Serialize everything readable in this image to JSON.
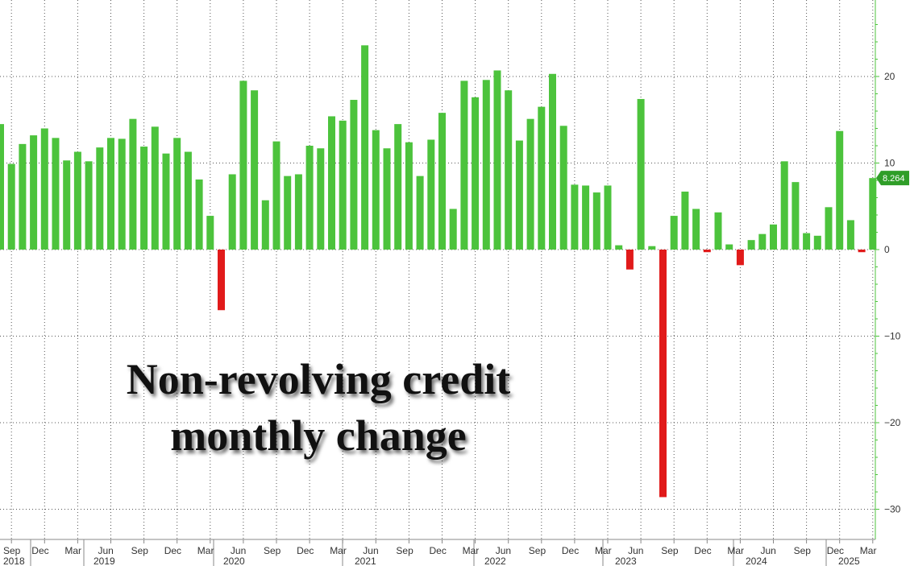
{
  "chart_data": {
    "type": "bar",
    "title_lines": [
      "Non-revolving credit",
      "monthly change"
    ],
    "colors": {
      "positive": "#4cc33c",
      "negative": "#e11a1a",
      "axis": "#4cc33c",
      "grid": "#555555"
    },
    "ylim": [
      -31,
      28
    ],
    "yticks": [
      20,
      10,
      0,
      -10,
      -20,
      -30
    ],
    "grid": true,
    "last_value_label": "8.264",
    "values": [
      14.5,
      9.9,
      12.2,
      13.2,
      14.0,
      12.9,
      10.3,
      11.3,
      10.2,
      11.8,
      12.9,
      12.8,
      15.1,
      11.9,
      14.2,
      11.1,
      12.9,
      11.3,
      8.1,
      3.9,
      -7.0,
      8.7,
      19.5,
      18.4,
      5.7,
      12.5,
      8.5,
      8.7,
      12.0,
      11.7,
      15.4,
      14.9,
      17.3,
      23.6,
      13.8,
      11.7,
      14.5,
      12.4,
      8.5,
      12.7,
      15.8,
      4.7,
      19.5,
      17.6,
      19.6,
      20.7,
      18.4,
      12.6,
      15.1,
      16.5,
      20.3,
      14.3,
      7.5,
      7.4,
      6.6,
      7.4,
      0.5,
      -2.3,
      17.4,
      0.4,
      -28.6,
      3.9,
      6.7,
      4.7,
      -0.3,
      4.3,
      0.6,
      -1.8,
      1.1,
      1.8,
      2.9,
      10.2,
      7.8,
      1.9,
      1.6,
      4.9,
      13.7,
      3.4,
      -0.3,
      8.264
    ],
    "x_month_labels": [
      "Sep",
      "Dec",
      "Mar",
      "Jun",
      "Sep",
      "Dec",
      "Mar",
      "Jun",
      "Sep",
      "Dec",
      "Mar",
      "Jun",
      "Sep",
      "Dec",
      "Mar",
      "Jun",
      "Sep",
      "Dec",
      "Mar",
      "Jun",
      "Sep",
      "Dec",
      "Mar",
      "Jun",
      "Sep",
      "Dec",
      "Mar"
    ],
    "x_year_labels": [
      "2018",
      "2019",
      "2020",
      "2021",
      "2022",
      "2023",
      "2024",
      "2025"
    ]
  }
}
